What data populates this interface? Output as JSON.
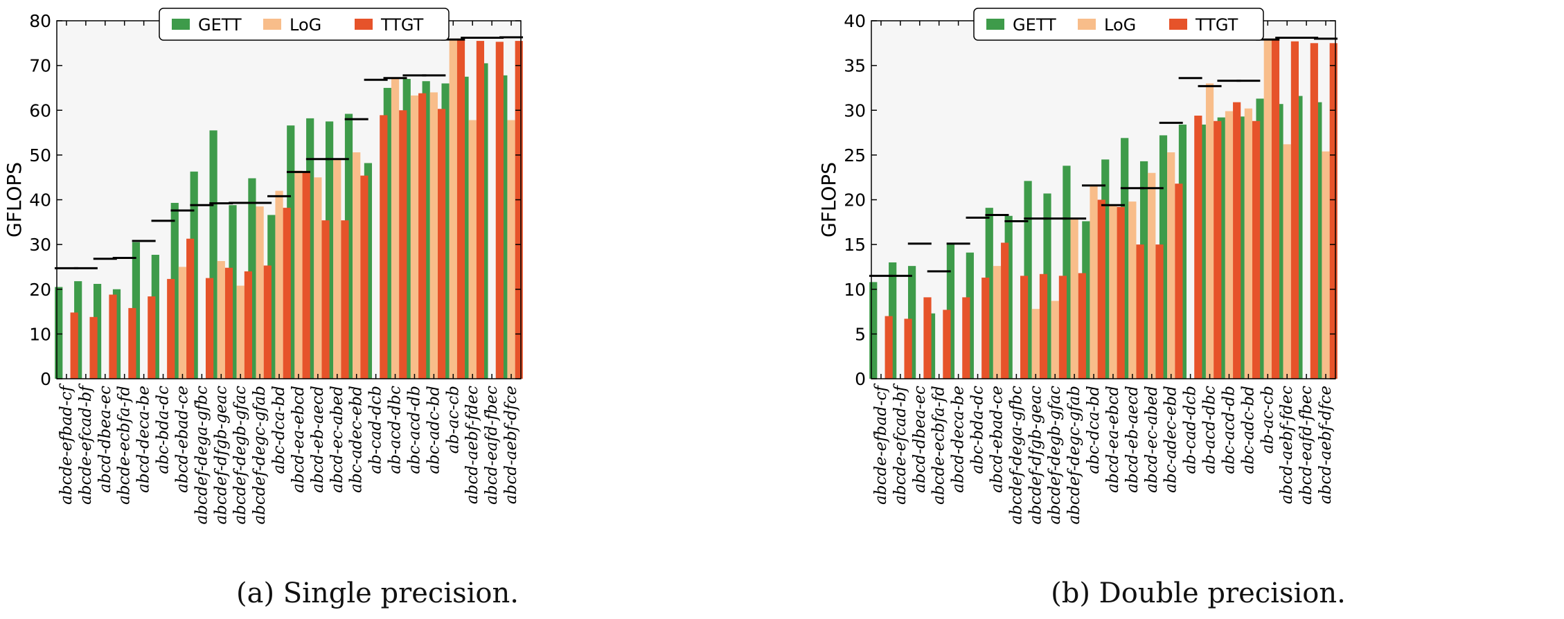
{
  "captions": [
    "(a) Single precision.",
    "(b) Double precision."
  ],
  "colors": {
    "GETT": "#3e9b4a",
    "LoG": "#f8bd8a",
    "TTGT": "#e6532a",
    "marker": "#000000",
    "plot_bg": "#f6f6f6"
  },
  "chart_data": [
    {
      "type": "bar",
      "ylabel": "GFLOPS",
      "ylim": [
        0,
        80
      ],
      "yticks": [
        0,
        10,
        20,
        30,
        40,
        50,
        60,
        70,
        80
      ],
      "legend": {
        "placement": "top-center",
        "entries": [
          "GETT",
          "LoG",
          "TTGT"
        ]
      },
      "categories": [
        "abcde-efbad-cf",
        "abcde-efcad-bf",
        "abcd-dbea-ec",
        "abcde-ecbfa-fd",
        "abcd-deca-be",
        "abc-bda-dc",
        "abcd-ebad-ce",
        "abcdef-dega-gfbc",
        "abcdef-dfgb-geac",
        "abcdef-degb-gfac",
        "abcdef-degc-gfab",
        "abc-dca-bd",
        "abcd-ea-ebcd",
        "abcd-eb-aecd",
        "abcd-ec-abed",
        "abc-adec-ebd",
        "ab-cad-dcb",
        "ab-acd-dbc",
        "abc-acd-db",
        "abc-adc-bd",
        "ab-ac-cb",
        "abcd-aebf-fdec",
        "abcd-eafd-fbec",
        "abcd-aebf-dfce"
      ],
      "series": [
        {
          "name": "GETT",
          "values": [
            20.5,
            21.8,
            21.2,
            20,
            30.5,
            27.7,
            39.3,
            46.3,
            55.5,
            38.8,
            44.8,
            36.6,
            56.6,
            58.2,
            57.5,
            59.2,
            48.2,
            65,
            67,
            66.5,
            66,
            67.5,
            70.5,
            67.8
          ]
        },
        {
          "name": "LoG",
          "values": [
            0,
            0,
            0,
            0,
            0,
            0,
            25,
            0,
            26.3,
            20.8,
            38.5,
            42,
            46.5,
            45,
            49,
            50.6,
            0,
            67,
            63.3,
            64,
            76,
            57.8,
            0,
            57.8
          ]
        },
        {
          "name": "TTGT",
          "values": [
            14.8,
            13.8,
            18.8,
            15.8,
            18.4,
            22.3,
            31.3,
            22.5,
            24.8,
            24,
            25.3,
            38.2,
            46.3,
            35.4,
            35.4,
            45.4,
            58.9,
            60,
            63.8,
            60.3,
            76,
            75.5,
            75.3,
            75.5
          ]
        }
      ],
      "peak_markers": [
        24.7,
        24.7,
        26.8,
        27,
        30.8,
        35.3,
        37.6,
        38.8,
        39.2,
        39.3,
        39.3,
        40.8,
        46.2,
        49.1,
        49.1,
        58,
        66.8,
        67.2,
        67.8,
        67.8,
        75.8,
        76.2,
        76.2,
        76.3
      ]
    },
    {
      "type": "bar",
      "ylabel": "GFLOPS",
      "ylim": [
        0,
        40
      ],
      "yticks": [
        0,
        5,
        10,
        15,
        20,
        25,
        30,
        35,
        40
      ],
      "legend": {
        "placement": "top-center",
        "entries": [
          "GETT",
          "LoG",
          "TTGT"
        ]
      },
      "categories": [
        "abcde-efbad-cf",
        "abcde-efcad-bf",
        "abcd-dbea-ec",
        "abcde-ecbfa-fd",
        "abcd-deca-be",
        "abc-bda-dc",
        "abcd-ebad-ce",
        "abcdef-dega-gfbc",
        "abcdef-dfgb-geac",
        "abcdef-degb-gfac",
        "abcdef-degc-gfab",
        "abc-dca-bd",
        "abcd-ea-ebcd",
        "abcd-eb-aecd",
        "abcd-ec-abed",
        "abc-adec-ebd",
        "ab-cad-dcb",
        "ab-acd-dbc",
        "abc-acd-db",
        "abc-adc-bd",
        "ab-ac-cb",
        "abcd-aebf-fdec",
        "abcd-eafd-fbec",
        "abcd-aebf-dfce"
      ],
      "series": [
        {
          "name": "GETT",
          "values": [
            10.8,
            13,
            12.6,
            7.3,
            15.1,
            14.1,
            19.1,
            18.2,
            22.1,
            20.7,
            23.8,
            17.6,
            24.5,
            26.9,
            24.3,
            27.2,
            28.4,
            28.4,
            29.2,
            29.3,
            31.3,
            30.7,
            31.6,
            30.9
          ]
        },
        {
          "name": "LoG",
          "values": [
            0,
            0,
            0,
            0,
            0,
            0,
            12.6,
            0,
            7.8,
            8.7,
            18,
            21.7,
            19.3,
            19.8,
            23,
            25.3,
            0,
            33,
            29.9,
            30.2,
            38,
            26.2,
            0,
            25.4
          ]
        },
        {
          "name": "TTGT",
          "values": [
            7,
            6.7,
            9.1,
            7.7,
            9.1,
            11.3,
            15.2,
            11.5,
            11.7,
            11.5,
            11.8,
            20,
            19.2,
            15,
            15,
            21.8,
            29.4,
            28.8,
            30.9,
            28.8,
            38,
            37.7,
            37.5,
            37.5
          ]
        }
      ],
      "peak_markers": [
        11.5,
        11.5,
        15.1,
        12,
        15.1,
        18,
        18.3,
        17.6,
        17.9,
        17.9,
        17.9,
        21.6,
        19.4,
        21.3,
        21.3,
        28.6,
        33.6,
        32.7,
        33.3,
        33.3,
        37.9,
        38.1,
        38.1,
        38
      ]
    }
  ]
}
